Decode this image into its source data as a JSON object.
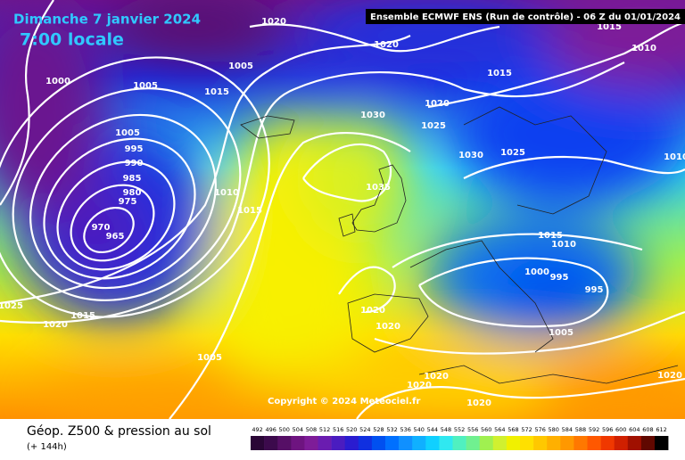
{
  "header": {
    "date": "Dimanche 7 janvier 2024",
    "time": "7:00 locale",
    "model": "Ensemble ECMWF ENS  (Run de contrôle)  -  06 Z du 01/01/2024"
  },
  "copyright": "Copyright © 2024 Meteociel.fr",
  "footer": {
    "title": "Géop. Z500 & pression au sol",
    "lead": "(+ 144h)"
  },
  "colorbar": {
    "values": [
      492,
      496,
      500,
      504,
      508,
      512,
      516,
      520,
      524,
      528,
      532,
      536,
      540,
      544,
      548,
      552,
      556,
      560,
      564,
      568,
      572,
      576,
      580,
      584,
      588,
      592,
      596,
      600,
      604,
      608,
      612
    ],
    "colors": [
      "#2a0636",
      "#3c0a4c",
      "#560f66",
      "#6e1480",
      "#7e1c98",
      "#6a1cb0",
      "#4a1cc0",
      "#2a1cd0",
      "#1030e0",
      "#0050f0",
      "#0070ff",
      "#1090ff",
      "#10b0ff",
      "#10d0ff",
      "#30e8f0",
      "#50f0c0",
      "#70f090",
      "#a0f050",
      "#d0f030",
      "#f0f000",
      "#ffe000",
      "#ffc800",
      "#ffb000",
      "#ff9800",
      "#ff7800",
      "#ff5800",
      "#f03800",
      "#d02000",
      "#a01000",
      "#600800",
      "#000000"
    ]
  },
  "isobar_labels": [
    "1020",
    "1020",
    "1015",
    "1010",
    "1000",
    "1005",
    "1005",
    "1015",
    "1015",
    "1020",
    "1030",
    "1025",
    "1005",
    "995",
    "990",
    "985",
    "980",
    "975",
    "970",
    "965",
    "1010",
    "1015",
    "1035",
    "1030",
    "1025",
    "1015",
    "1010",
    "1000",
    "995",
    "995",
    "1005",
    "1020",
    "1020",
    "1025",
    "1020",
    "1015",
    "1005",
    "1020",
    "1020",
    "1020",
    "1020",
    "1010"
  ]
}
